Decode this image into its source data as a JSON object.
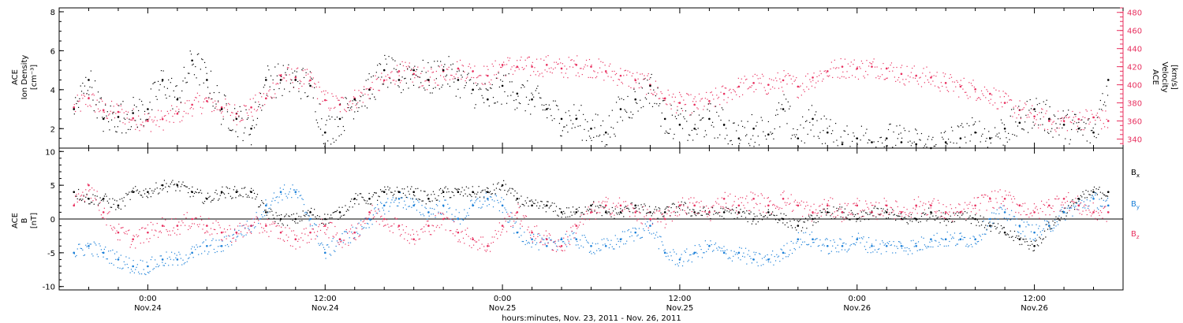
{
  "colors": {
    "density": "#000000",
    "velocity": "#e8305f",
    "bx": "#000000",
    "by": "#1a7fd8",
    "bz": "#e8305f",
    "axis": "#000000"
  },
  "chart_data": [
    {
      "type": "scatter",
      "panel": "top",
      "ylabel_lines": [
        "ACE",
        "Ion Density",
        "[cm⁻³]"
      ],
      "ylim": [
        1,
        8.2
      ],
      "yticks": [
        2,
        4,
        6,
        8
      ],
      "y2label_lines": [
        "ACE",
        "Velocity",
        "[km/s]"
      ],
      "y2lim": [
        330,
        485
      ],
      "y2ticks": [
        340,
        360,
        380,
        400,
        420,
        440,
        460,
        480
      ],
      "xlim_hours": [
        -6,
        66
      ],
      "series": [
        {
          "name": "",
          "axis": "left",
          "color": "#000000",
          "x": [
            -5,
            -4,
            -3,
            -2,
            -1,
            0,
            1,
            2,
            3,
            4,
            5,
            6,
            7,
            8,
            9,
            10,
            11,
            12,
            13,
            14,
            15,
            16,
            17,
            18,
            19,
            20,
            21,
            22,
            23,
            24,
            25,
            26,
            27,
            28,
            29,
            30,
            31,
            32,
            33,
            34,
            35,
            36,
            37,
            38,
            39,
            40,
            41,
            42,
            43,
            44,
            45,
            46,
            47,
            48,
            49,
            50,
            51,
            52,
            53,
            54,
            55,
            56,
            57,
            58,
            59,
            60,
            61,
            62,
            63,
            64,
            65
          ],
          "values": [
            3.0,
            4.5,
            2.5,
            2.6,
            2.8,
            3.0,
            4.5,
            3.5,
            5.5,
            4.5,
            3.0,
            2.5,
            2.0,
            4.5,
            4.5,
            4.5,
            4.2,
            1.8,
            2.5,
            3.5,
            4.0,
            5.0,
            4.5,
            5.0,
            4.5,
            5.0,
            4.5,
            4.0,
            3.5,
            4.2,
            3.8,
            3.5,
            3.0,
            2.5,
            2.5,
            2.0,
            1.8,
            3.0,
            3.5,
            4.2,
            2.5,
            2.2,
            2.0,
            2.5,
            2.2,
            1.5,
            2.0,
            1.7,
            3.0,
            1.5,
            2.5,
            1.8,
            1.2,
            1.5,
            1.3,
            1.5,
            1.3,
            1.2,
            1.0,
            1.3,
            1.5,
            1.8,
            1.5,
            2.0,
            2.3,
            3.0,
            2.5,
            2.2,
            2.0,
            1.8,
            4.5
          ]
        },
        {
          "name": "",
          "axis": "right",
          "color": "#e8305f",
          "x": [
            -5,
            -4,
            -3,
            -2,
            -1,
            0,
            1,
            2,
            3,
            4,
            5,
            6,
            7,
            8,
            9,
            10,
            11,
            12,
            13,
            14,
            15,
            16,
            17,
            18,
            19,
            20,
            21,
            22,
            23,
            24,
            25,
            26,
            27,
            28,
            29,
            30,
            31,
            32,
            33,
            34,
            35,
            36,
            37,
            38,
            39,
            40,
            41,
            42,
            43,
            44,
            45,
            46,
            47,
            48,
            49,
            50,
            51,
            52,
            53,
            54,
            55,
            56,
            57,
            58,
            59,
            60,
            61,
            62,
            63,
            64,
            65
          ],
          "values": [
            375,
            385,
            372,
            370,
            363,
            360,
            362,
            368,
            378,
            382,
            375,
            368,
            375,
            385,
            410,
            408,
            405,
            383,
            378,
            385,
            395,
            405,
            415,
            412,
            405,
            415,
            418,
            415,
            410,
            422,
            420,
            420,
            422,
            418,
            422,
            420,
            415,
            410,
            405,
            400,
            385,
            380,
            378,
            382,
            390,
            398,
            402,
            400,
            405,
            398,
            408,
            415,
            420,
            418,
            420,
            418,
            412,
            410,
            408,
            402,
            398,
            395,
            390,
            380,
            372,
            365,
            360,
            360,
            362,
            364,
            360
          ]
        }
      ]
    },
    {
      "type": "scatter",
      "panel": "bottom",
      "ylabel_lines": [
        "ACE",
        "B",
        "[nT]"
      ],
      "ylim": [
        -10.5,
        10.5
      ],
      "yticks": [
        -10,
        -5,
        0,
        5,
        10
      ],
      "xlim_hours": [
        -6,
        66
      ],
      "xticks": [
        {
          "hour": 0,
          "time": "0:00",
          "date": "Nov.24"
        },
        {
          "hour": 12,
          "time": "12:00",
          "date": "Nov.24"
        },
        {
          "hour": 24,
          "time": "0:00",
          "date": "Nov.25"
        },
        {
          "hour": 36,
          "time": "12:00",
          "date": "Nov.25"
        },
        {
          "hour": 48,
          "time": "0:00",
          "date": "Nov.26"
        },
        {
          "hour": 60,
          "time": "12:00",
          "date": "Nov.26"
        }
      ],
      "xlabel": "hours:minutes, Nov. 23, 2011 - Nov. 26, 2011",
      "series": [
        {
          "name": "B",
          "sub": "x",
          "color": "#000000",
          "x": [
            -5,
            -4,
            -3,
            -2,
            -1,
            0,
            1,
            2,
            3,
            4,
            5,
            6,
            7,
            8,
            9,
            10,
            11,
            12,
            13,
            14,
            15,
            16,
            17,
            18,
            19,
            20,
            21,
            22,
            23,
            24,
            25,
            26,
            27,
            28,
            29,
            30,
            31,
            32,
            33,
            34,
            35,
            36,
            37,
            38,
            39,
            40,
            41,
            42,
            43,
            44,
            45,
            46,
            47,
            48,
            49,
            50,
            51,
            52,
            53,
            54,
            55,
            56,
            57,
            58,
            59,
            60,
            61,
            62,
            63,
            64,
            65
          ],
          "values": [
            4,
            3,
            3,
            2,
            4,
            4,
            5,
            5,
            4,
            3,
            4,
            4,
            4,
            1,
            0,
            0,
            1,
            0,
            1,
            3,
            3,
            4,
            4,
            4,
            3,
            4,
            4,
            4,
            4,
            5,
            3,
            2,
            2,
            1,
            1,
            2,
            1,
            1,
            2,
            1,
            1,
            2,
            1,
            1,
            1,
            1,
            0,
            1,
            0,
            -1,
            0,
            1,
            1,
            0,
            1,
            1,
            0,
            0,
            1,
            0,
            1,
            0,
            -1,
            -2,
            -3,
            -4,
            -1,
            1,
            3,
            4,
            4
          ]
        },
        {
          "name": "B",
          "sub": "y",
          "color": "#1a7fd8",
          "x": [
            -5,
            -4,
            -3,
            -2,
            -1,
            0,
            1,
            2,
            3,
            4,
            5,
            6,
            7,
            8,
            9,
            10,
            11,
            12,
            13,
            14,
            15,
            16,
            17,
            18,
            19,
            20,
            21,
            22,
            23,
            24,
            25,
            26,
            27,
            28,
            29,
            30,
            31,
            32,
            33,
            34,
            35,
            36,
            37,
            38,
            39,
            40,
            41,
            42,
            43,
            44,
            45,
            46,
            47,
            48,
            49,
            50,
            51,
            52,
            53,
            54,
            55,
            56,
            57,
            58,
            59,
            60,
            61,
            62,
            63,
            64,
            65
          ],
          "values": [
            -5,
            -4,
            -5,
            -6,
            -7,
            -7,
            -6,
            -6,
            -5,
            -4,
            -4,
            -2,
            -1,
            2,
            4,
            4,
            0,
            -5,
            -3,
            -2,
            0,
            2,
            3,
            2,
            1,
            2,
            0,
            2,
            3,
            2,
            -2,
            -3,
            -4,
            -3,
            -3,
            -4,
            -4,
            -3,
            -2,
            -1,
            -5,
            -6,
            -5,
            -4,
            -5,
            -5,
            -6,
            -6,
            -5,
            -3,
            -3,
            -4,
            -4,
            -3,
            -4,
            -4,
            -4,
            -4,
            -3,
            -3,
            -3,
            -3,
            0,
            1,
            -1,
            -2,
            -1,
            1,
            2,
            3,
            2
          ]
        },
        {
          "name": "B",
          "sub": "z",
          "color": "#e8305f",
          "x": [
            -5,
            -4,
            -3,
            -2,
            -1,
            0,
            1,
            2,
            3,
            4,
            5,
            6,
            7,
            8,
            9,
            10,
            11,
            12,
            13,
            14,
            15,
            16,
            17,
            18,
            19,
            20,
            21,
            22,
            23,
            24,
            25,
            26,
            27,
            28,
            29,
            30,
            31,
            32,
            33,
            34,
            35,
            36,
            37,
            38,
            39,
            40,
            41,
            42,
            43,
            44,
            45,
            46,
            47,
            48,
            49,
            50,
            51,
            52,
            53,
            54,
            55,
            56,
            57,
            58,
            59,
            60,
            61,
            62,
            63,
            64,
            65
          ],
          "values": [
            2,
            5,
            1,
            -2,
            -3,
            -2,
            -1,
            -1,
            0,
            -1,
            -2,
            -2,
            -1,
            -1,
            -2,
            -3,
            -2,
            -1,
            -3,
            -2,
            1,
            0,
            -1,
            -3,
            -1,
            0,
            -2,
            -3,
            -4,
            -1,
            1,
            -2,
            -3,
            -4,
            -1,
            1,
            2,
            2,
            1,
            0,
            0,
            2,
            2,
            1,
            3,
            2,
            3,
            2,
            3,
            2,
            1,
            2,
            1,
            2,
            1,
            2,
            1,
            2,
            2,
            1,
            1,
            2,
            3,
            3,
            2,
            1,
            2,
            3,
            2,
            1,
            1
          ]
        }
      ]
    }
  ]
}
